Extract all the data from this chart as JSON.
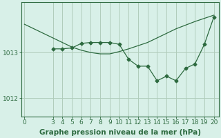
{
  "title": "Graphe pression niveau de la mer (hPa)",
  "background_color": "#d8f0e8",
  "line_color": "#2d6a3f",
  "grid_color": "#b0ccbb",
  "x_ticks": [
    0,
    3,
    4,
    5,
    6,
    7,
    8,
    9,
    10,
    11,
    12,
    13,
    14,
    15,
    16,
    17,
    18,
    19,
    20
  ],
  "y_ticks": [
    1012,
    1013
  ],
  "ylim": [
    1011.6,
    1014.1
  ],
  "xlim": [
    -0.3,
    20.5
  ],
  "line1_x": [
    0,
    3,
    4,
    5,
    6,
    7,
    8,
    9,
    10,
    11,
    12,
    13,
    14,
    15,
    16,
    17,
    18,
    19,
    20
  ],
  "line1_y": [
    1013.62,
    1013.32,
    1013.22,
    1013.12,
    1013.05,
    1013.0,
    1012.97,
    1012.97,
    1013.02,
    1013.08,
    1013.15,
    1013.22,
    1013.32,
    1013.42,
    1013.52,
    1013.6,
    1013.68,
    1013.75,
    1013.82
  ],
  "line2_x": [
    3,
    4,
    5,
    6,
    7,
    8,
    9,
    10,
    11,
    12,
    13,
    14,
    15,
    16,
    17,
    18,
    19,
    20
  ],
  "line2_y": [
    1013.08,
    1013.08,
    1013.1,
    1013.2,
    1013.22,
    1013.22,
    1013.22,
    1013.18,
    1012.85,
    1012.7,
    1012.7,
    1012.38,
    1012.48,
    1012.38,
    1012.65,
    1012.75,
    1013.18,
    1013.78
  ],
  "font_color": "#2d6a3f",
  "title_fontsize": 7.5,
  "tick_fontsize": 6.5,
  "marker": "D",
  "marker_size": 2.5
}
